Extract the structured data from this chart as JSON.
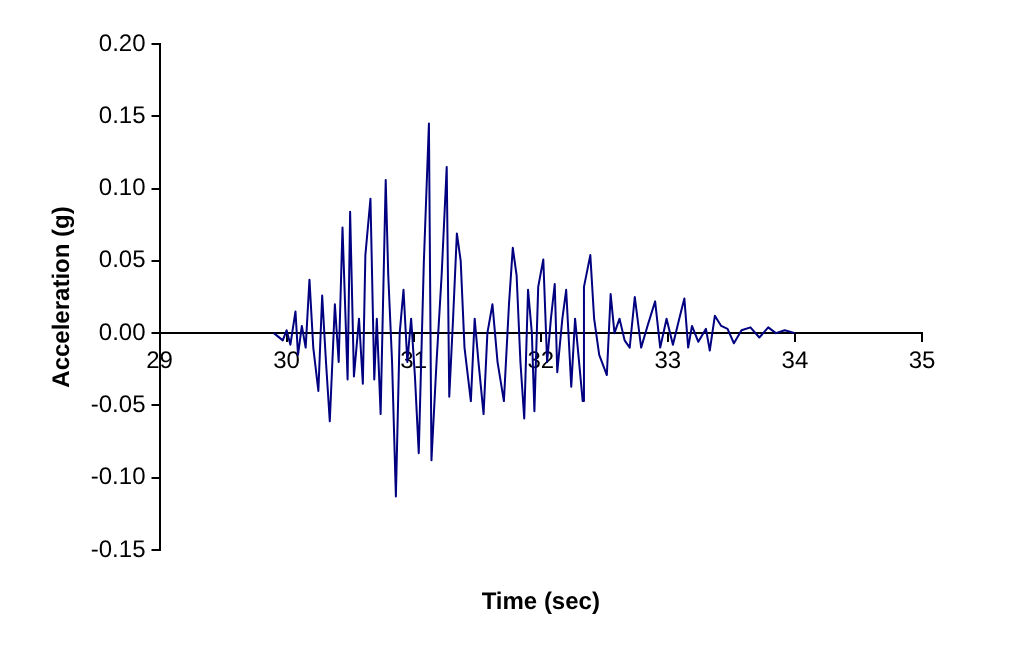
{
  "chart_data": {
    "type": "line",
    "xlabel": "Time (sec)",
    "ylabel": "Acceleration (g)",
    "xlim": [
      29,
      35
    ],
    "xticks": [
      29,
      30,
      31,
      32,
      33,
      34,
      35
    ],
    "ylim": [
      -0.15,
      0.2
    ],
    "yticks": [
      -0.15,
      {
        "value": -0.1,
        "label": "-0.10"
      },
      -0.05,
      {
        "value": 0,
        "label": "0.00"
      },
      0.05,
      {
        "value": 0.1,
        "label": "0.10"
      },
      0.15,
      {
        "value": 0.2,
        "label": "0.20"
      }
    ],
    "grid": false,
    "marker": "none",
    "line_style": "solid",
    "x": [
      29.9,
      29.97,
      30.0,
      30.03,
      30.07,
      30.09,
      30.12,
      30.15,
      30.18,
      30.21,
      30.25,
      30.28,
      30.31,
      30.34,
      30.38,
      30.41,
      30.44,
      30.48,
      30.5,
      30.53,
      30.57,
      30.6,
      30.62,
      30.66,
      30.69,
      30.71,
      30.74,
      30.78,
      30.8,
      30.83,
      30.86,
      30.89,
      30.92,
      30.95,
      30.98,
      31.01,
      31.04,
      31.08,
      31.12,
      31.14,
      31.18,
      31.22,
      31.26,
      31.28,
      31.31,
      31.34,
      31.37,
      31.4,
      31.45,
      31.48,
      31.51,
      31.55,
      31.58,
      31.62,
      31.66,
      31.71,
      31.75,
      31.78,
      31.81,
      31.84,
      31.87,
      31.9,
      31.93,
      31.95,
      31.98,
      32.02,
      32.05,
      32.08,
      32.11,
      32.13,
      32.17,
      32.2,
      32.24,
      32.27,
      32.33,
      32.34,
      32.39,
      32.42,
      32.46,
      32.52,
      32.55,
      32.58,
      32.62,
      32.66,
      32.7,
      32.74,
      32.79,
      32.84,
      32.9,
      32.94,
      32.99,
      33.04,
      33.09,
      33.13,
      33.16,
      33.19,
      33.24,
      33.3,
      33.33,
      33.37,
      33.42,
      33.47,
      33.52,
      33.58,
      33.65,
      33.72,
      33.79,
      33.85,
      33.92,
      34.0
    ],
    "series": [
      {
        "color": "#000080",
        "values": [
          0,
          -0.005,
          0.002,
          -0.008,
          0.015,
          -0.015,
          0.005,
          -0.01,
          0.037,
          -0.01,
          -0.04,
          0.026,
          -0.02,
          -0.061,
          0.02,
          -0.02,
          0.073,
          -0.032,
          0.084,
          -0.03,
          0.01,
          -0.035,
          0.054,
          0.093,
          -0.032,
          0.01,
          -0.056,
          0.106,
          0.04,
          -0.02,
          -0.113,
          0,
          0.03,
          -0.02,
          0.01,
          -0.03,
          -0.083,
          0.049,
          0.145,
          -0.088,
          -0.02,
          0.04,
          0.115,
          -0.044,
          0.01,
          0.069,
          0.05,
          -0.01,
          -0.047,
          0.01,
          -0.02,
          -0.056,
          0,
          0.02,
          -0.02,
          -0.047,
          0.02,
          0.059,
          0.04,
          -0.02,
          -0.059,
          0.03,
          0,
          -0.054,
          0.032,
          0.051,
          -0.02,
          0.01,
          0.034,
          -0.027,
          0.01,
          0.03,
          -0.037,
          0.01,
          -0.047,
          0.032,
          0.054,
          0.01,
          -0.015,
          -0.029,
          0.027,
          0,
          0.01,
          -0.005,
          -0.01,
          0.025,
          -0.01,
          0.005,
          0.022,
          -0.01,
          0.01,
          -0.008,
          0.01,
          0.024,
          -0.01,
          0.005,
          -0.006,
          0.003,
          -0.012,
          0.012,
          0.005,
          0.003,
          -0.007,
          0.002,
          0.004,
          -0.003,
          0.004,
          0,
          0.002,
          0
        ]
      }
    ]
  }
}
